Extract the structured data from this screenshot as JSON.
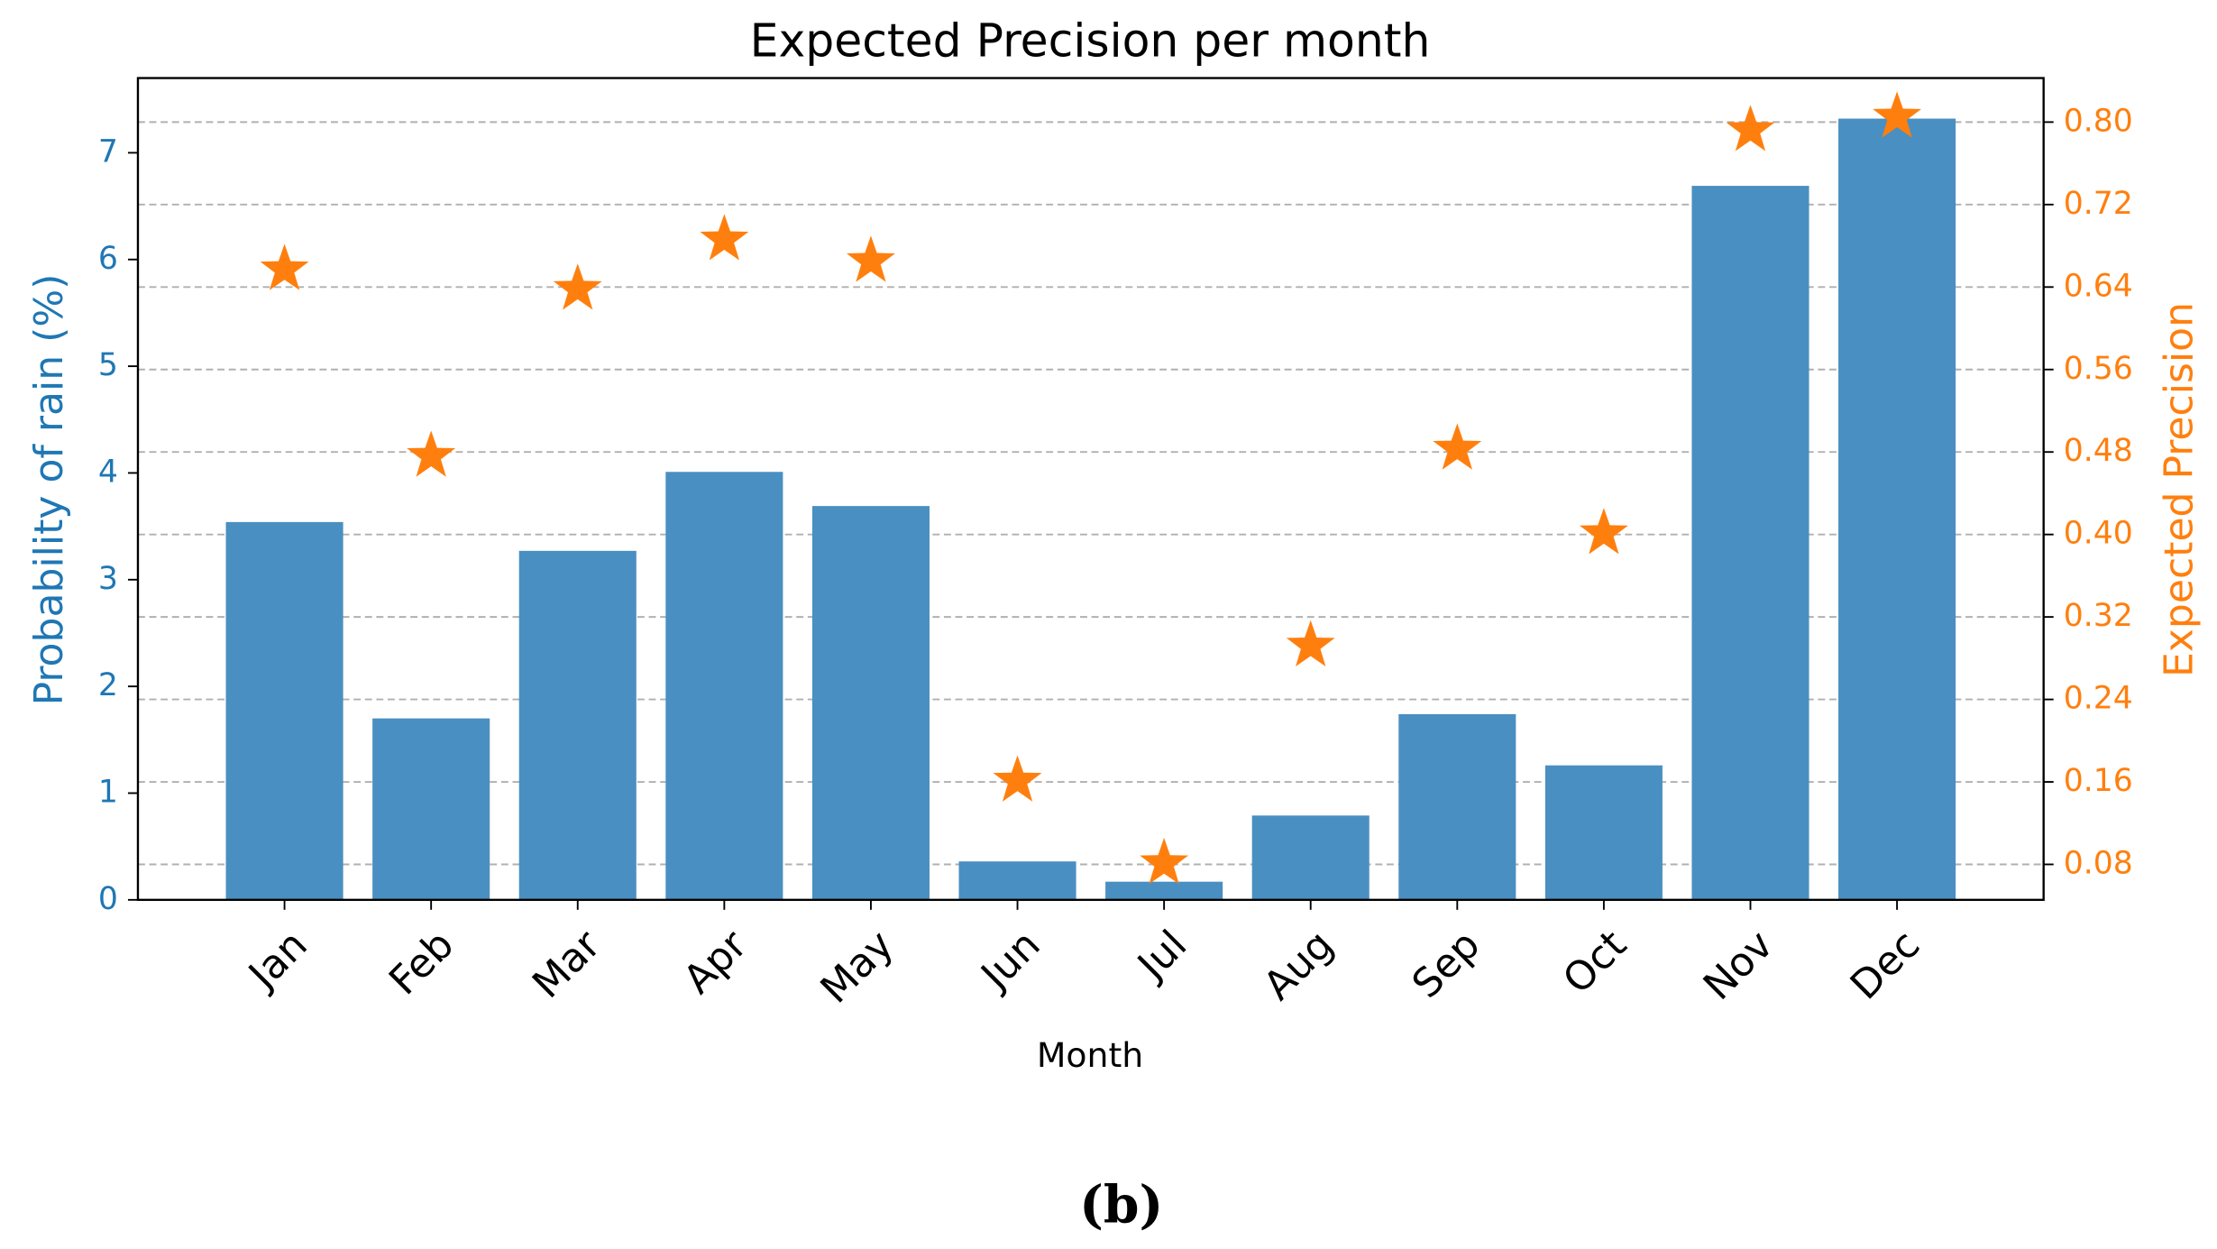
{
  "chart_data": {
    "type": "bar",
    "title": "Expected Precision per month",
    "x_label": "Month",
    "y_label": "Probability of rain (%)",
    "y2_label": "Expected Precision",
    "caption": "(b)",
    "categories": [
      "Jan",
      "Feb",
      "Mar",
      "Apr",
      "May",
      "Jun",
      "Jul",
      "Aug",
      "Sep",
      "Oct",
      "Nov",
      "Dec"
    ],
    "series": [
      {
        "type": "bar",
        "color": "#4a8fc1",
        "values": [
          3.54,
          1.7,
          3.27,
          4.01,
          3.69,
          0.36,
          0.17,
          0.79,
          1.74,
          1.26,
          6.69,
          7.32
        ]
      },
      {
        "type": "scatter",
        "marker": "star",
        "axis": "y2",
        "color": "#ff7f0e",
        "values": [
          0.657,
          0.476,
          0.638,
          0.686,
          0.665,
          0.161,
          0.081,
          0.292,
          0.483,
          0.401,
          0.792,
          0.805
        ]
      }
    ],
    "ylim": [
      0,
      7.7
    ],
    "yticks": [
      0,
      1,
      2,
      3,
      4,
      5,
      6,
      7
    ],
    "y_color": "#1f77b4",
    "y2lim": [
      0.0456,
      0.8427
    ],
    "y2ticks": [
      0.08,
      0.16,
      0.24,
      0.32,
      {
        "value": 0.4,
        "label": "0.40"
      },
      0.48,
      0.56,
      0.64,
      0.72,
      {
        "value": 0.8,
        "label": "0.80"
      }
    ],
    "y2_color": "#ff7f0e",
    "grid": "y2"
  }
}
